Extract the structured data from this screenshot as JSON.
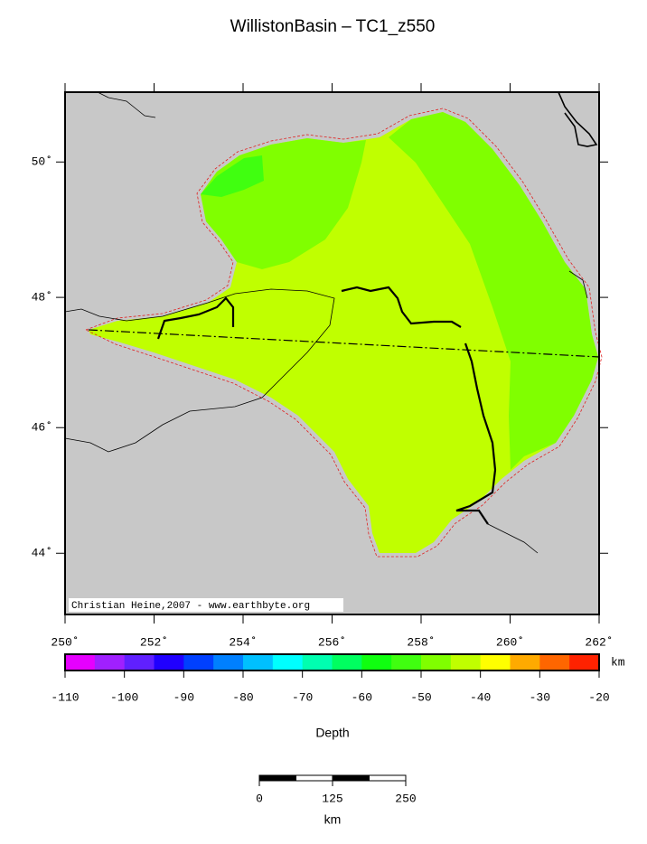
{
  "map": {
    "title": "WillistonBasin – TC1_z550",
    "credit": "Christian Heine,2007 - www.earthbyte.org",
    "xlim": [
      250,
      262
    ],
    "ylim": [
      43,
      51
    ],
    "xticks": [
      {
        "value": 250,
        "label": "250˚"
      },
      {
        "value": 252,
        "label": "252˚"
      },
      {
        "value": 254,
        "label": "254˚"
      },
      {
        "value": 256,
        "label": "256˚"
      },
      {
        "value": 258,
        "label": "258˚"
      },
      {
        "value": 260,
        "label": "260˚"
      },
      {
        "value": 262,
        "label": "262˚"
      }
    ],
    "yticks": [
      {
        "value": 44,
        "label": "44˚"
      },
      {
        "value": 46,
        "label": "46˚"
      },
      {
        "value": 48,
        "label": "48˚"
      },
      {
        "value": 50,
        "label": "50˚"
      }
    ],
    "colorbar": {
      "label": "Depth",
      "unit": "km",
      "range": [
        -110,
        -20
      ],
      "ticks": [
        -110,
        -100,
        -90,
        -80,
        -70,
        -60,
        -50,
        -40,
        -30,
        -20
      ],
      "colors": [
        "#e600ff",
        "#a020ff",
        "#6020ff",
        "#2000ff",
        "#0040ff",
        "#0080ff",
        "#00c0ff",
        "#00ffff",
        "#00ffb0",
        "#00ff60",
        "#10ff10",
        "#40ff10",
        "#80ff00",
        "#c0ff00",
        "#ffff00",
        "#ffaa00",
        "#ff6600",
        "#ff2200"
      ]
    },
    "scale_bar": {
      "unit": "km",
      "ticks": [
        0,
        125,
        250
      ]
    }
  }
}
